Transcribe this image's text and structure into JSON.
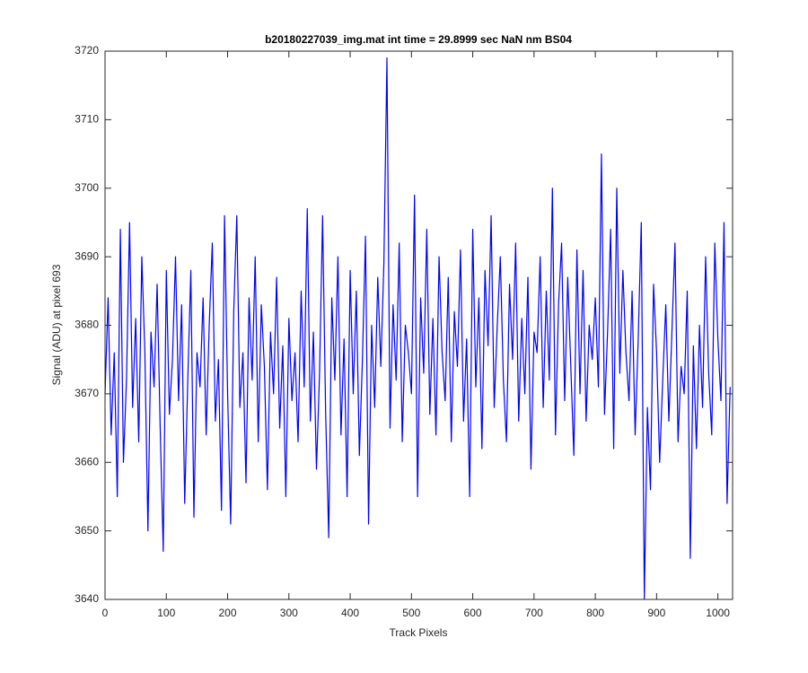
{
  "chart_data": {
    "type": "line",
    "title": "b20180227039_img.mat int time = 29.8999 sec  NaN nm BS04",
    "xlabel": "Track Pixels",
    "ylabel": "Signal (ADU) at pixel 693",
    "xlim": [
      0,
      1024
    ],
    "ylim": [
      3640,
      3720
    ],
    "xticks": [
      0,
      100,
      200,
      300,
      400,
      500,
      600,
      700,
      800,
      900,
      1000
    ],
    "yticks": [
      3640,
      3650,
      3660,
      3670,
      3680,
      3690,
      3700,
      3710,
      3720
    ],
    "grid": false,
    "x": [
      0,
      5,
      10,
      15,
      20,
      25,
      30,
      35,
      40,
      45,
      50,
      55,
      60,
      65,
      70,
      75,
      80,
      85,
      90,
      95,
      100,
      105,
      110,
      115,
      120,
      125,
      130,
      135,
      140,
      145,
      150,
      155,
      160,
      165,
      170,
      175,
      180,
      185,
      190,
      195,
      200,
      205,
      210,
      215,
      220,
      225,
      230,
      235,
      240,
      245,
      250,
      255,
      260,
      265,
      270,
      275,
      280,
      285,
      290,
      295,
      300,
      305,
      310,
      315,
      320,
      325,
      330,
      335,
      340,
      345,
      350,
      355,
      360,
      365,
      370,
      375,
      380,
      385,
      390,
      395,
      400,
      405,
      410,
      415,
      420,
      425,
      430,
      435,
      440,
      445,
      450,
      455,
      460,
      465,
      470,
      475,
      480,
      485,
      490,
      495,
      500,
      505,
      510,
      515,
      520,
      525,
      530,
      535,
      540,
      545,
      550,
      555,
      560,
      565,
      570,
      575,
      580,
      585,
      590,
      595,
      600,
      605,
      610,
      615,
      620,
      625,
      630,
      635,
      640,
      645,
      650,
      655,
      660,
      665,
      670,
      675,
      680,
      685,
      690,
      695,
      700,
      705,
      710,
      715,
      720,
      725,
      730,
      735,
      740,
      745,
      750,
      755,
      760,
      765,
      770,
      775,
      780,
      785,
      790,
      795,
      800,
      805,
      810,
      815,
      820,
      825,
      830,
      835,
      840,
      845,
      850,
      855,
      860,
      865,
      870,
      875,
      880,
      885,
      890,
      895,
      900,
      905,
      910,
      915,
      920,
      925,
      930,
      935,
      940,
      945,
      950,
      955,
      960,
      965,
      970,
      975,
      980,
      985,
      990,
      995,
      1000,
      1005,
      1010,
      1015,
      1020
    ],
    "series": [
      {
        "color": "#0000ff",
        "values": [
          3670,
          3684,
          3664,
          3676,
          3655,
          3694,
          3660,
          3672,
          3695,
          3668,
          3681,
          3663,
          3690,
          3676,
          3650,
          3679,
          3671,
          3686,
          3665,
          3647,
          3688,
          3667,
          3675,
          3690,
          3669,
          3683,
          3654,
          3672,
          3688,
          3652,
          3676,
          3671,
          3684,
          3664,
          3680,
          3692,
          3666,
          3675,
          3653,
          3696,
          3670,
          3651,
          3682,
          3696,
          3668,
          3676,
          3657,
          3684,
          3672,
          3690,
          3663,
          3683,
          3674,
          3656,
          3679,
          3670,
          3687,
          3665,
          3677,
          3655,
          3681,
          3669,
          3676,
          3663,
          3685,
          3671,
          3697,
          3666,
          3679,
          3659,
          3673,
          3696,
          3667,
          3649,
          3684,
          3672,
          3690,
          3664,
          3678,
          3655,
          3688,
          3670,
          3685,
          3661,
          3675,
          3693,
          3651,
          3680,
          3668,
          3687,
          3674,
          3689,
          3719,
          3665,
          3683,
          3672,
          3692,
          3663,
          3680,
          3676,
          3670,
          3699,
          3655,
          3684,
          3673,
          3694,
          3667,
          3681,
          3664,
          3690,
          3676,
          3669,
          3687,
          3663,
          3682,
          3674,
          3691,
          3666,
          3678,
          3655,
          3694,
          3671,
          3684,
          3662,
          3688,
          3677,
          3696,
          3668,
          3680,
          3690,
          3672,
          3663,
          3686,
          3675,
          3692,
          3666,
          3681,
          3670,
          3687,
          3659,
          3679,
          3676,
          3690,
          3668,
          3685,
          3672,
          3700,
          3664,
          3683,
          3692,
          3669,
          3687,
          3674,
          3661,
          3691,
          3670,
          3688,
          3666,
          3680,
          3675,
          3684,
          3671,
          3705,
          3667,
          3679,
          3694,
          3662,
          3700,
          3673,
          3688,
          3676,
          3669,
          3685,
          3664,
          3678,
          3695,
          3640,
          3668,
          3656,
          3686,
          3676,
          3660,
          3672,
          3683,
          3666,
          3679,
          3692,
          3663,
          3674,
          3670,
          3685,
          3646,
          3677,
          3662,
          3680,
          3668,
          3690,
          3673,
          3664,
          3692,
          3678,
          3669,
          3695,
          3654,
          3671
        ]
      }
    ]
  }
}
